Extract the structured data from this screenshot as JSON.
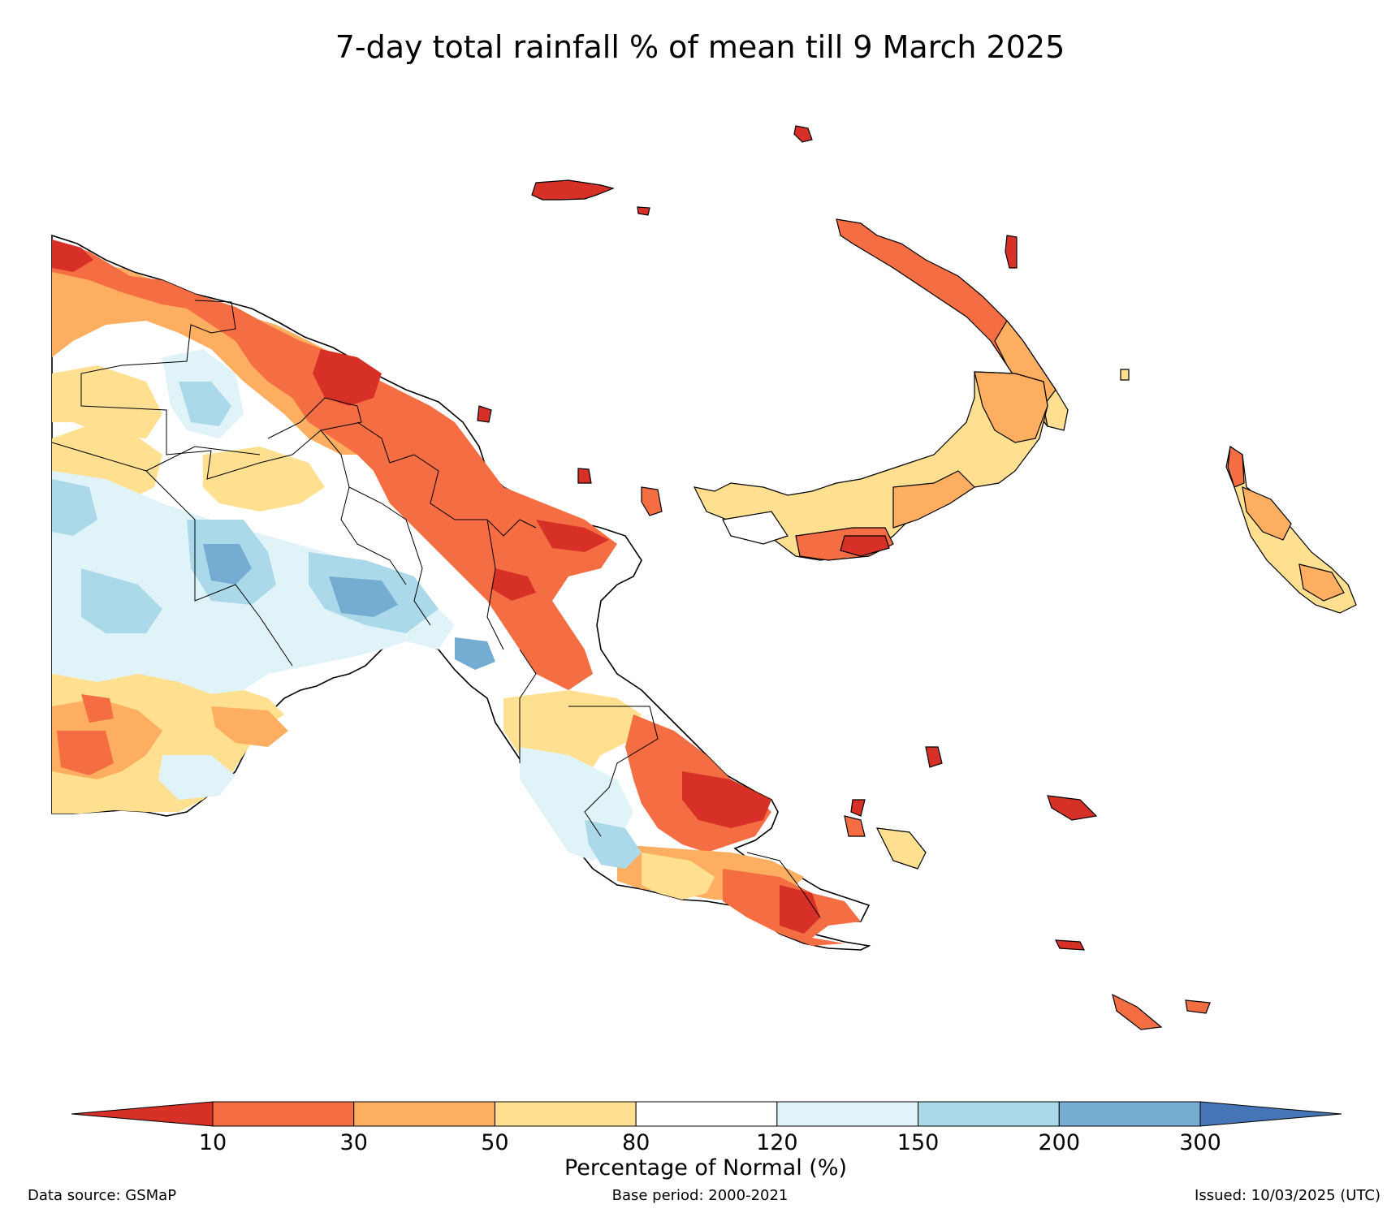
{
  "title": "7-day total rainfall % of mean till 9 March 2025",
  "colorbar": {
    "label": "Percentage of Normal (%)",
    "ticks": [
      "10",
      "30",
      "50",
      "80",
      "120",
      "150",
      "200",
      "300"
    ],
    "under_color": "#d73027",
    "over_color": "#4575b4",
    "bin_colors": [
      "#f46d43",
      "#fdae61",
      "#fee090",
      "#ffffff",
      "#e0f3f8",
      "#abd9e9",
      "#74add1"
    ]
  },
  "footer": {
    "source": "Data source: GSMaP",
    "base_period": "Base period: 2000-2021",
    "issued": "Issued: 10/03/2025 (UTC)"
  },
  "legend_categories": [
    {
      "range": "<10",
      "color": "#d73027"
    },
    {
      "range": "10-30",
      "color": "#f46d43"
    },
    {
      "range": "30-50",
      "color": "#fdae61"
    },
    {
      "range": "50-80",
      "color": "#fee090"
    },
    {
      "range": "80-120",
      "color": "#ffffff"
    },
    {
      "range": "120-150",
      "color": "#e0f3f8"
    },
    {
      "range": "150-200",
      "color": "#abd9e9"
    },
    {
      "range": "200-300",
      "color": "#74add1"
    },
    {
      "range": ">300",
      "color": "#4575b4"
    }
  ]
}
